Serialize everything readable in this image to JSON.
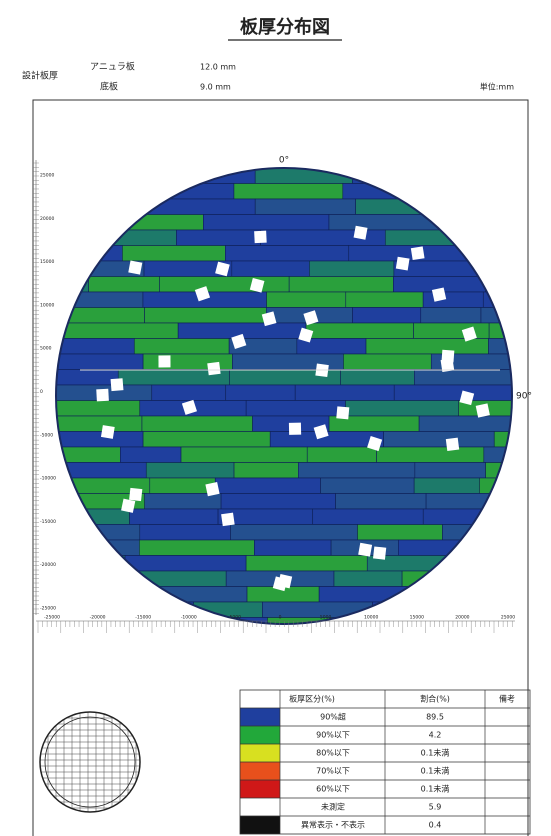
{
  "header": {
    "title": "板厚分布図",
    "design_label": "設計板厚",
    "annular_label": "アニュラ板",
    "annular_value": "12.0 mm",
    "bottom_label": "底板",
    "bottom_value": "9.0 mm",
    "unit": "単位:mm"
  },
  "map": {
    "top_label": "0°",
    "right_label": "90°",
    "y_axis": [
      "25000",
      "20000",
      "15000",
      "10000",
      "5000",
      "0",
      "-5000",
      "-10000",
      "-15000",
      "-20000",
      "-25000"
    ],
    "x_axis": [
      "-25000",
      "-20000",
      "-15000",
      "-10000",
      "-5000",
      "0",
      "5000",
      "10000",
      "15000",
      "20000",
      "25000"
    ]
  },
  "legend": {
    "columns": [
      "板厚区分(%)",
      "割合(%)",
      "備考"
    ],
    "rows": [
      {
        "label": "90%超",
        "ratio": "89.5",
        "color": "#1f3f9e"
      },
      {
        "label": "90%以下",
        "ratio": "4.2",
        "color": "#22a83a"
      },
      {
        "label": "80%以下",
        "ratio": "0.1未満",
        "color": "#d8e020"
      },
      {
        "label": "70%以下",
        "ratio": "0.1未満",
        "color": "#e8501c"
      },
      {
        "label": "60%以下",
        "ratio": "0.1未満",
        "color": "#d01818"
      },
      {
        "label": "未測定",
        "ratio": "5.9",
        "color": "#ffffff"
      },
      {
        "label": "異常表示・不表示",
        "ratio": "0.4",
        "color": "#111111"
      }
    ]
  }
}
